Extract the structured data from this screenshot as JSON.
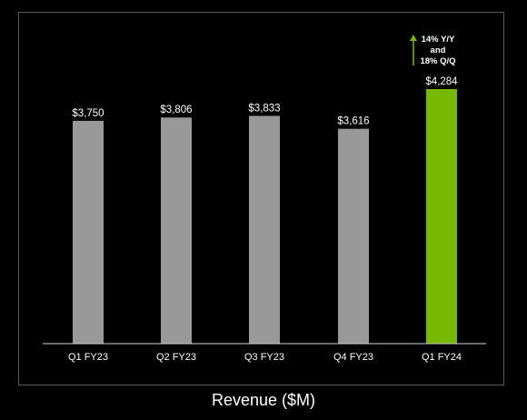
{
  "chart_data": {
    "type": "bar",
    "title": "Revenue ($M)",
    "xlabel": "",
    "ylabel": "",
    "ylim": [
      0,
      4284
    ],
    "grid": false,
    "legend": "none",
    "categories": [
      "Q1 FY23",
      "Q2 FY23",
      "Q3 FY23",
      "Q4 FY23",
      "Q1 FY24"
    ],
    "values": [
      3750,
      3806,
      3833,
      3616,
      4284
    ],
    "value_labels": [
      "$3,750",
      "$3,806",
      "$3,833",
      "$3,616",
      "$4,284"
    ],
    "bar_colors": [
      "#999999",
      "#999999",
      "#999999",
      "#999999",
      "#76b900"
    ],
    "annotation": {
      "lines": [
        "14% Y/Y",
        "and",
        "18% Q/Q"
      ],
      "arrow": "up",
      "arrow_color": "#76b900"
    }
  }
}
